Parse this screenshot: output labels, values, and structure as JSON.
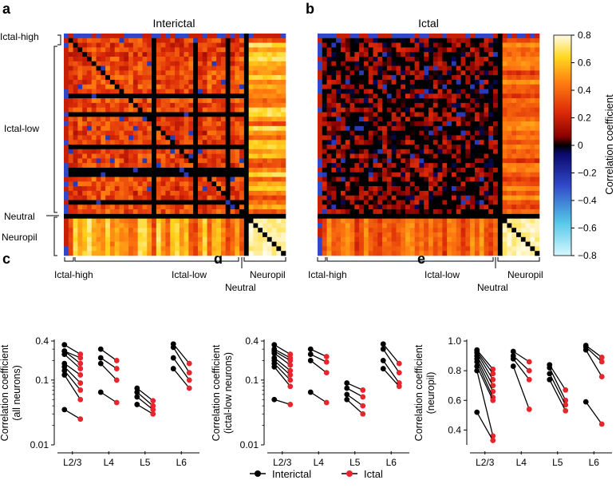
{
  "panels": {
    "a": {
      "letter": "a",
      "title": "Interictal",
      "left_labels": [
        "Ictal-high",
        "Ictal-low",
        "Neutral",
        "Neuropil"
      ],
      "bottom_labels": [
        "Ictal-high",
        "Ictal-low",
        "Neutral",
        "Neuropil"
      ]
    },
    "b": {
      "letter": "b",
      "title": "Ictal",
      "bottom_labels": [
        "Ictal-high",
        "Ictal-low",
        "Neutral",
        "Neuropil"
      ]
    },
    "c": {
      "letter": "c"
    },
    "d": {
      "letter": "d"
    },
    "e": {
      "letter": "e"
    }
  },
  "colorbar": {
    "label": "Correlation coefficient",
    "ticks": [
      "0.8",
      "0.6",
      "0.4",
      "0.2",
      "0",
      "−0.2",
      "−0.4",
      "−0.6",
      "−0.8"
    ],
    "range": [
      -0.8,
      0.8
    ]
  },
  "legend": {
    "interictal": "Interictal",
    "ictal": "Ictal"
  },
  "colors": {
    "interictal": "#000000",
    "ictal": "#e8242c"
  },
  "chart_data": [
    {
      "type": "heatmap",
      "title": "Interictal",
      "description_groups": [
        "Ictal-high",
        "Ictal-low",
        "Neutral",
        "Neuropil"
      ],
      "size": 48,
      "value_range": [
        -0.8,
        0.8
      ]
    },
    {
      "type": "heatmap",
      "title": "Ictal",
      "description_groups": [
        "Ictal-high",
        "Ictal-low",
        "Neutral",
        "Neuropil"
      ],
      "size": 48,
      "value_range": [
        -0.8,
        0.8
      ]
    },
    {
      "type": "scatter",
      "ylabel": [
        "Correlation coefficient",
        "(all neurons)"
      ],
      "categories": [
        "L2/3",
        "L4",
        "L5",
        "L6"
      ],
      "yscale": "log",
      "ylim": [
        0.01,
        0.4
      ],
      "yticks": [
        "0.4",
        "0.1",
        "0.01"
      ],
      "pairs": [
        [
          [
            0.35,
            0.25
          ],
          [
            0.28,
            0.22
          ],
          [
            0.28,
            0.18
          ],
          [
            0.25,
            0.15
          ],
          [
            0.18,
            0.12
          ],
          [
            0.16,
            0.09
          ],
          [
            0.14,
            0.07
          ],
          [
            0.12,
            0.05
          ],
          [
            0.035,
            0.025
          ]
        ],
        [
          [
            0.3,
            0.2
          ],
          [
            0.22,
            0.15
          ],
          [
            0.18,
            0.1
          ],
          [
            0.065,
            0.045
          ]
        ],
        [
          [
            0.075,
            0.048
          ],
          [
            0.065,
            0.04
          ],
          [
            0.055,
            0.035
          ],
          [
            0.042,
            0.03
          ]
        ],
        [
          [
            0.36,
            0.18
          ],
          [
            0.32,
            0.13
          ],
          [
            0.22,
            0.1
          ],
          [
            0.15,
            0.075
          ]
        ]
      ]
    },
    {
      "type": "scatter",
      "ylabel": [
        "Correlation coefficient",
        "(ictal-low neurons)"
      ],
      "categories": [
        "L2/3",
        "L4",
        "L5",
        "L6"
      ],
      "yscale": "log",
      "ylim": [
        0.01,
        0.4
      ],
      "yticks": [
        "0.4",
        "0.1",
        "0.01"
      ],
      "pairs": [
        [
          [
            0.35,
            0.25
          ],
          [
            0.3,
            0.22
          ],
          [
            0.28,
            0.2
          ],
          [
            0.26,
            0.17
          ],
          [
            0.22,
            0.14
          ],
          [
            0.2,
            0.12
          ],
          [
            0.18,
            0.1
          ],
          [
            0.16,
            0.08
          ],
          [
            0.05,
            0.042
          ]
        ],
        [
          [
            0.3,
            0.23
          ],
          [
            0.25,
            0.19
          ],
          [
            0.2,
            0.13
          ],
          [
            0.065,
            0.045
          ]
        ],
        [
          [
            0.09,
            0.07
          ],
          [
            0.075,
            0.055
          ],
          [
            0.06,
            0.04
          ],
          [
            0.05,
            0.03
          ]
        ],
        [
          [
            0.36,
            0.18
          ],
          [
            0.3,
            0.13
          ],
          [
            0.2,
            0.09
          ],
          [
            0.15,
            0.08
          ]
        ]
      ]
    },
    {
      "type": "scatter",
      "ylabel": [
        "Correlation coefficient",
        "(neuropil)"
      ],
      "categories": [
        "L2/3",
        "L4",
        "L5",
        "L6"
      ],
      "yscale": "linear",
      "ylim": [
        0.3,
        1.0
      ],
      "yticks": [
        "1.0",
        "0.8",
        "0.6",
        "0.4"
      ],
      "pairs": [
        [
          [
            0.94,
            0.81
          ],
          [
            0.93,
            0.78
          ],
          [
            0.92,
            0.74
          ],
          [
            0.9,
            0.7
          ],
          [
            0.88,
            0.66
          ],
          [
            0.86,
            0.62
          ],
          [
            0.83,
            0.6
          ],
          [
            0.8,
            0.36
          ],
          [
            0.52,
            0.33
          ]
        ],
        [
          [
            0.93,
            0.86
          ],
          [
            0.9,
            0.8
          ],
          [
            0.88,
            0.74
          ],
          [
            0.83,
            0.54
          ]
        ],
        [
          [
            0.84,
            0.67
          ],
          [
            0.82,
            0.6
          ],
          [
            0.78,
            0.57
          ],
          [
            0.74,
            0.53
          ]
        ],
        [
          [
            0.97,
            0.89
          ],
          [
            0.96,
            0.86
          ],
          [
            0.94,
            0.76
          ],
          [
            0.59,
            0.44
          ]
        ]
      ]
    }
  ]
}
